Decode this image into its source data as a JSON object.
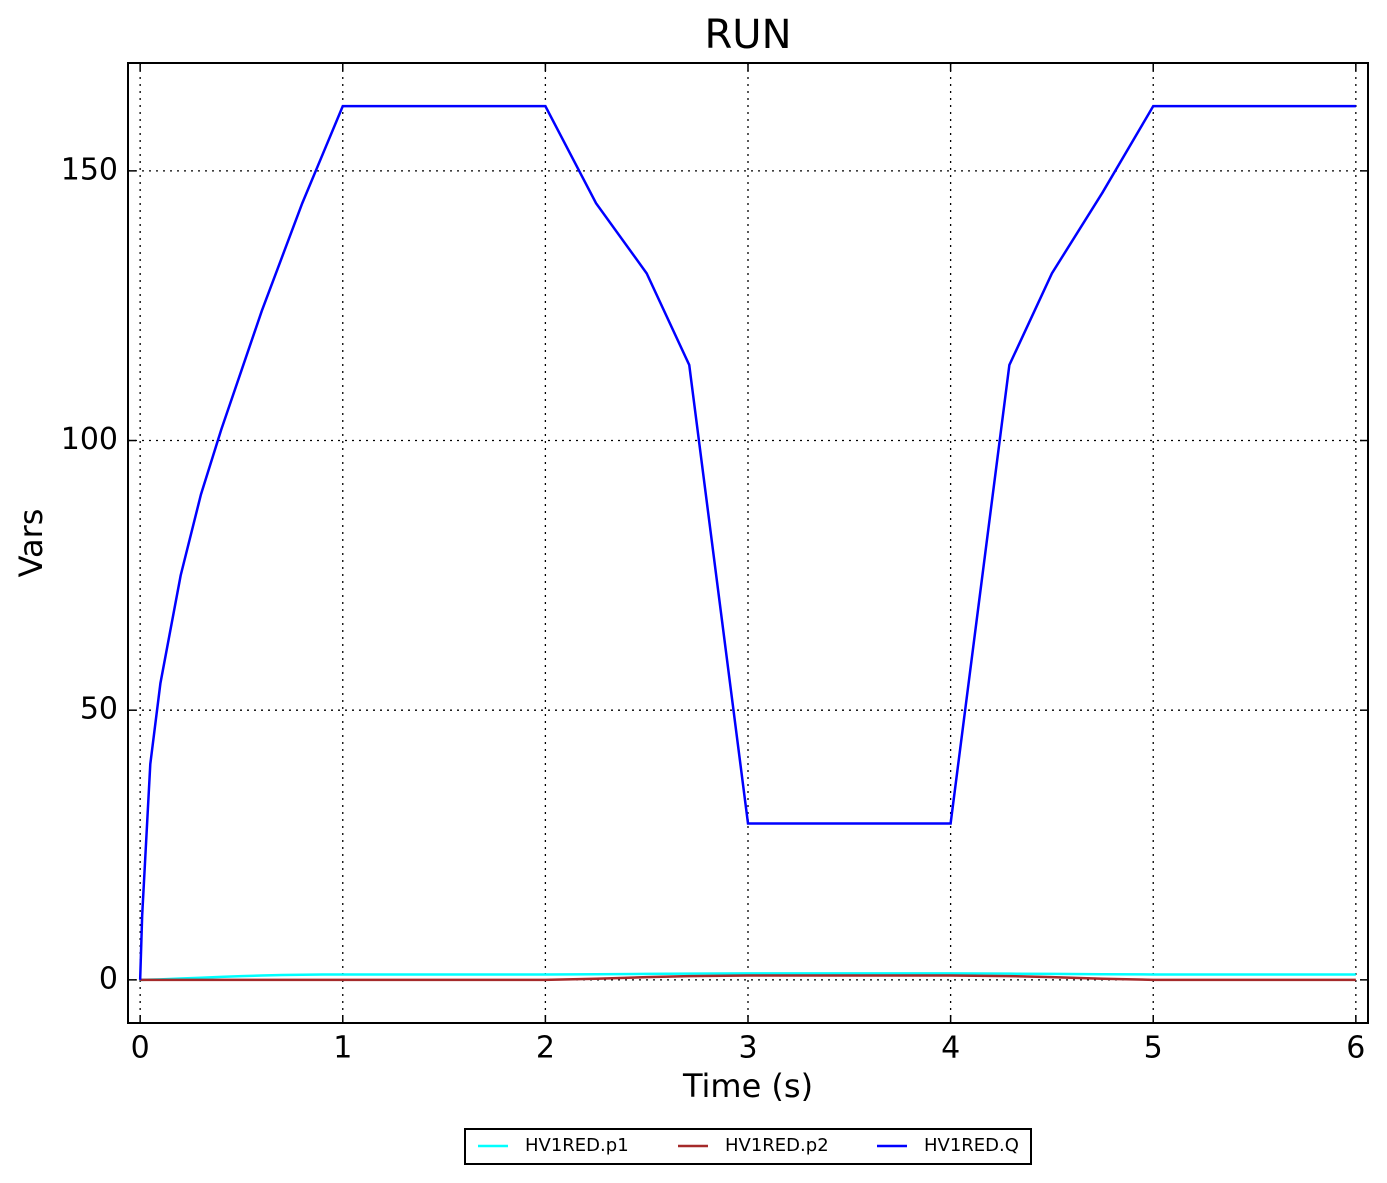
{
  "chart_data": {
    "type": "line",
    "title": "RUN",
    "xlabel": "Time (s)",
    "ylabel": "Vars",
    "x": [
      0,
      0.01,
      0.05,
      0.1,
      0.2,
      0.3,
      0.4,
      0.5,
      0.6,
      0.7,
      0.8,
      0.9,
      1,
      2,
      2.25,
      2.5,
      2.71,
      3,
      4,
      4.29,
      4.5,
      4.75,
      5,
      6
    ],
    "series": [
      {
        "name": "HV1RED.p1",
        "color": "#00ffff",
        "values": [
          0,
          0,
          0.05,
          0.1,
          0.25,
          0.4,
          0.55,
          0.7,
          0.8,
          0.9,
          0.95,
          1,
          1,
          1,
          1.05,
          1.1,
          1.15,
          1.2,
          1.2,
          1.15,
          1.1,
          1.05,
          1,
          1
        ]
      },
      {
        "name": "HV1RED.p2",
        "color": "#a52a2a",
        "values": [
          0,
          0,
          0,
          0,
          0,
          0,
          0,
          0,
          0,
          0,
          0,
          0,
          0,
          0,
          0.2,
          0.5,
          0.7,
          0.8,
          0.8,
          0.7,
          0.5,
          0.2,
          0,
          0
        ]
      },
      {
        "name": "HV1RED.Q",
        "color": "#0000ff",
        "values": [
          0,
          12,
          40,
          55,
          75,
          90,
          102,
          113,
          124,
          134,
          144,
          153,
          162,
          162,
          144,
          131,
          114,
          29,
          29,
          114,
          131,
          146,
          162,
          162
        ]
      }
    ],
    "xlim": [
      -0.06,
      6.06
    ],
    "ylim": [
      -8,
      170
    ],
    "xticks": [
      0,
      1,
      2,
      3,
      4,
      5,
      6
    ],
    "yticks": [
      0,
      50,
      100,
      150
    ],
    "grid": true,
    "legend": "lower center outside"
  }
}
